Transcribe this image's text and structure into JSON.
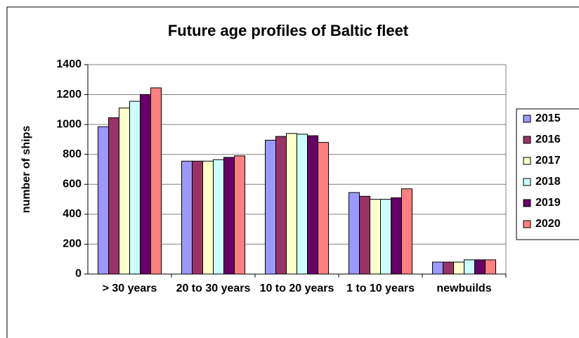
{
  "chart_data": {
    "type": "bar",
    "title": "Future age profiles of Baltic fleet",
    "y_label": "number of ships",
    "categories": [
      "> 30 years",
      "20 to 30 years",
      "10 to 20 years",
      "1 to 10 years",
      "newbuilds"
    ],
    "series": [
      {
        "name": "2015",
        "color": "#9999ff",
        "values": [
          985,
          755,
          895,
          545,
          80
        ]
      },
      {
        "name": "2016",
        "color": "#993366",
        "values": [
          1045,
          755,
          920,
          520,
          80
        ]
      },
      {
        "name": "2017",
        "color": "#ffffcc",
        "values": [
          1110,
          755,
          940,
          500,
          80
        ]
      },
      {
        "name": "2018",
        "color": "#ccffff",
        "values": [
          1155,
          765,
          935,
          500,
          95
        ]
      },
      {
        "name": "2019",
        "color": "#660066",
        "values": [
          1200,
          780,
          925,
          510,
          95
        ]
      },
      {
        "name": "2020",
        "color": "#ff8080",
        "values": [
          1245,
          790,
          880,
          570,
          95
        ]
      }
    ],
    "ylim": [
      0,
      1400
    ],
    "yticks": [
      0,
      200,
      400,
      600,
      800,
      1000,
      1200,
      1400
    ],
    "grid": true,
    "legend": "right"
  }
}
